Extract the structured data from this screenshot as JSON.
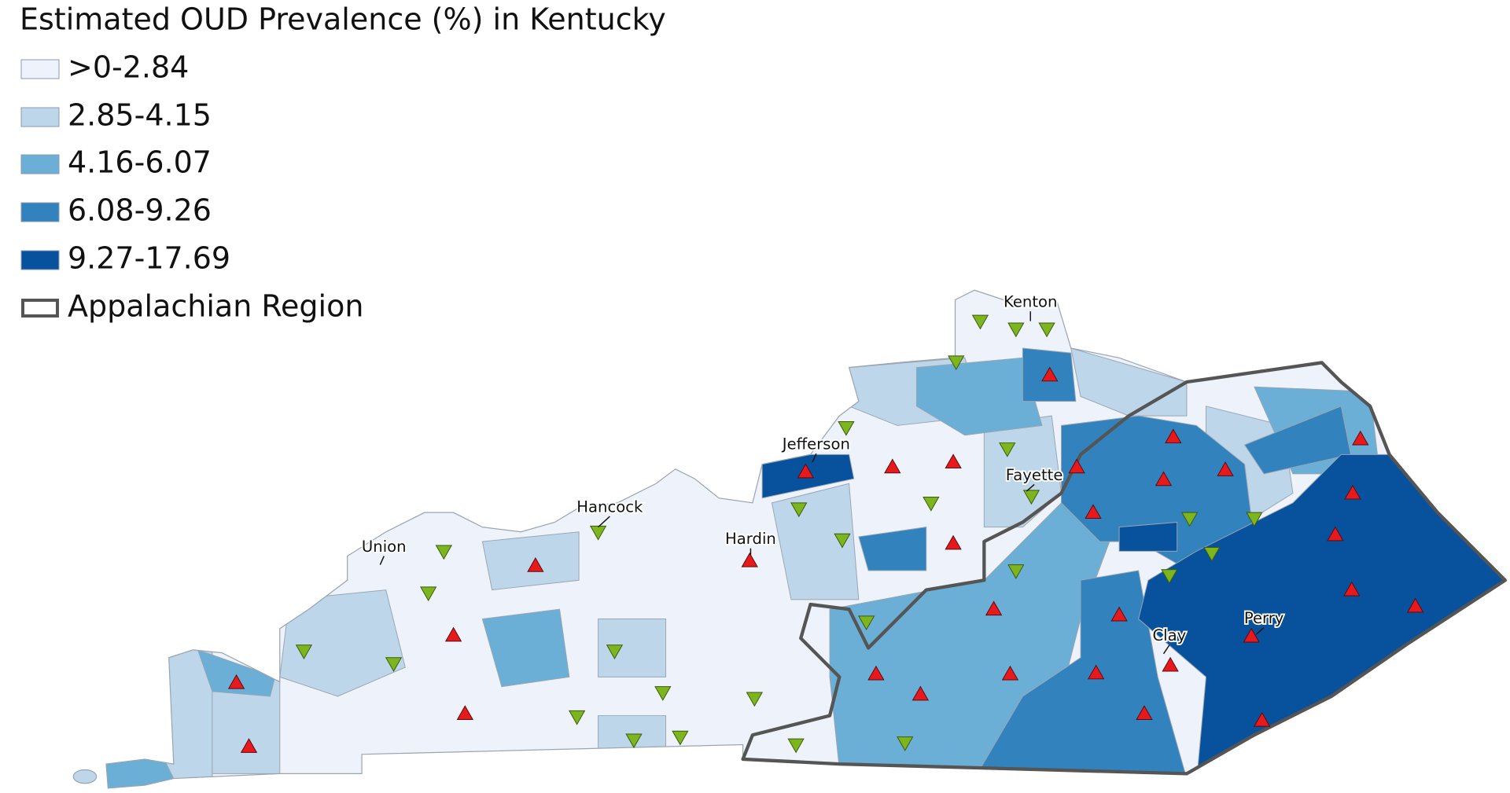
{
  "title": "Estimated OUD Prevalence (%) in Kentucky",
  "legend": {
    "items": [
      {
        "label": ">0-2.84",
        "color": "#eef3fb"
      },
      {
        "label": "2.85-4.15",
        "color": "#bdd6ea"
      },
      {
        "label": "4.16-6.07",
        "color": "#6baed6"
      },
      {
        "label": "6.08-9.26",
        "color": "#3182bd"
      },
      {
        "label": "9.27-17.69",
        "color": "#08519c"
      }
    ],
    "region": {
      "label": "Appalachian Region",
      "color": "#555555"
    }
  },
  "counties": [
    "Kenton",
    "Jefferson",
    "Fayette",
    "Hancock",
    "Hardin",
    "Union",
    "Clay",
    "Perry"
  ]
}
